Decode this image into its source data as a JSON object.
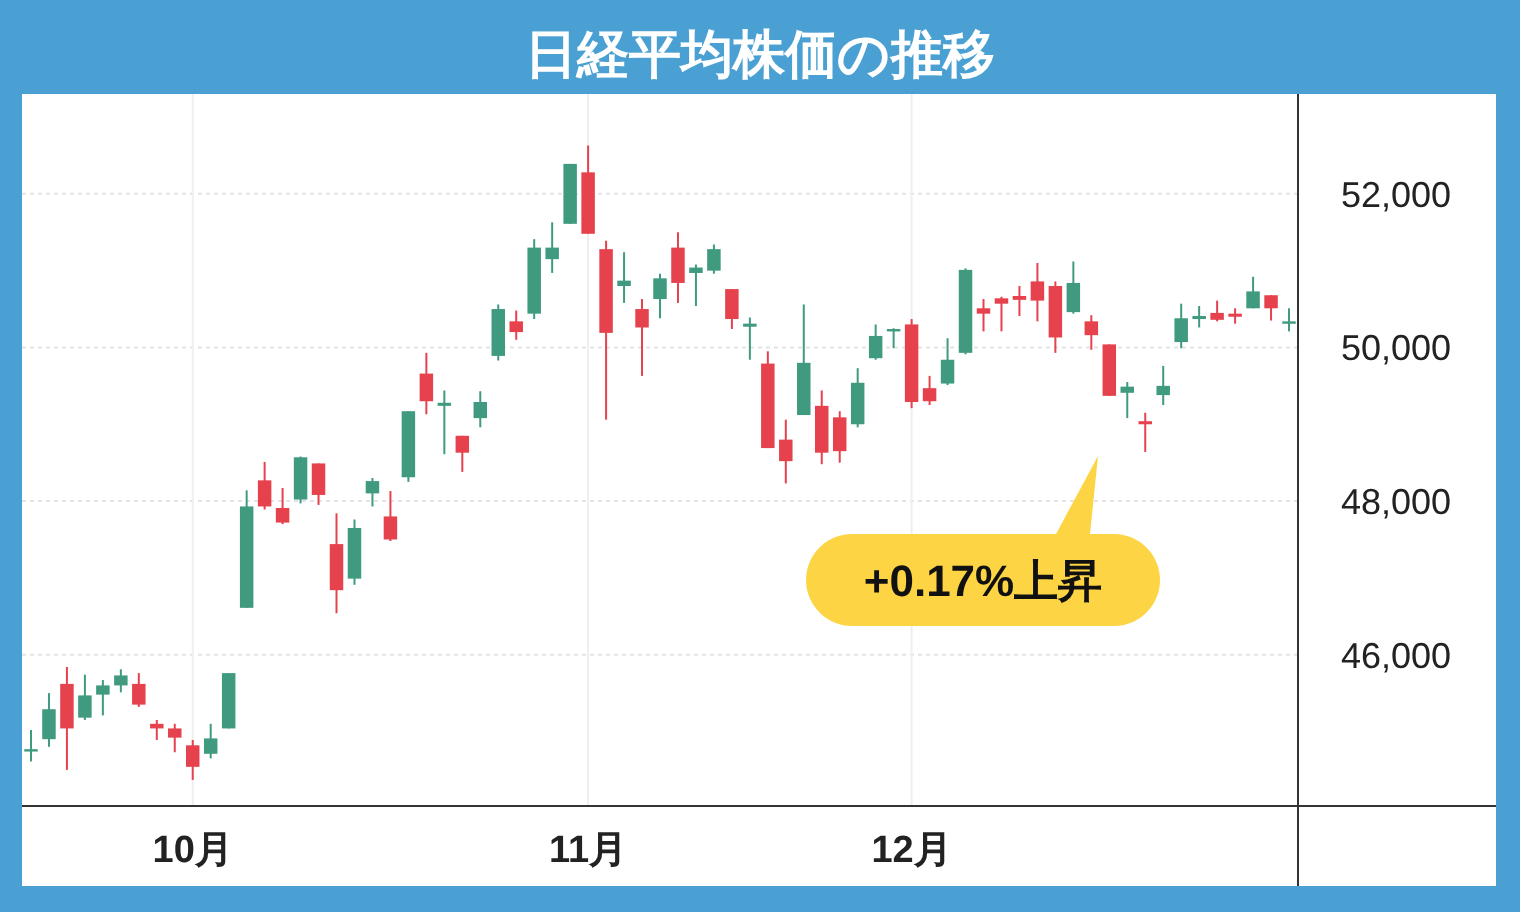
{
  "chart_data": {
    "type": "candlestick",
    "title": "日経平均株価の推移",
    "categories": [
      null,
      null,
      null,
      null,
      null,
      null,
      null,
      null,
      null,
      "10月",
      null,
      null,
      null,
      null,
      null,
      null,
      null,
      null,
      null,
      null,
      null,
      null,
      null,
      null,
      null,
      null,
      null,
      null,
      null,
      null,
      null,
      "11月",
      null,
      null,
      null,
      null,
      null,
      null,
      null,
      null,
      null,
      null,
      null,
      null,
      null,
      null,
      null,
      null,
      null,
      "12月",
      null,
      null,
      null,
      null,
      null,
      null,
      null,
      null,
      null,
      null,
      null,
      null,
      null,
      null,
      null,
      null,
      null,
      null,
      null,
      null,
      null
    ],
    "ohlc": [
      [
        44740,
        45020,
        44610,
        44770
      ],
      [
        44900,
        45500,
        44800,
        45290
      ],
      [
        45620,
        45840,
        44500,
        45040
      ],
      [
        45180,
        45740,
        45150,
        45470
      ],
      [
        45480,
        45670,
        45210,
        45600
      ],
      [
        45600,
        45810,
        45510,
        45730
      ],
      [
        45620,
        45760,
        45320,
        45350
      ],
      [
        45100,
        45150,
        44890,
        45040
      ],
      [
        45040,
        45100,
        44730,
        44920
      ],
      [
        44820,
        44890,
        44370,
        44540
      ],
      [
        44710,
        45100,
        44650,
        44910
      ],
      [
        45040,
        45760,
        45040,
        45760
      ],
      [
        46610,
        48140,
        46610,
        47930
      ],
      [
        48270,
        48510,
        47890,
        47930
      ],
      [
        47910,
        48170,
        47700,
        47720
      ],
      [
        48020,
        48580,
        47970,
        48570
      ],
      [
        48490,
        48490,
        47950,
        48080
      ],
      [
        47440,
        47840,
        46540,
        46840
      ],
      [
        46990,
        47760,
        46910,
        47650
      ],
      [
        48100,
        48300,
        47930,
        48260
      ],
      [
        47800,
        48130,
        47480,
        47500
      ],
      [
        48310,
        49170,
        48250,
        49170
      ],
      [
        49660,
        49930,
        49130,
        49300
      ],
      [
        49240,
        49440,
        48610,
        49280
      ],
      [
        48850,
        48850,
        48380,
        48630
      ],
      [
        49080,
        49430,
        48960,
        49290
      ],
      [
        49890,
        50560,
        49830,
        50500
      ],
      [
        50340,
        50480,
        50100,
        50200
      ],
      [
        50440,
        51410,
        50370,
        51300
      ],
      [
        51150,
        51630,
        50970,
        51300
      ],
      [
        51610,
        52390,
        51610,
        52390
      ],
      [
        52280,
        52630,
        51480,
        51480
      ],
      [
        51280,
        51390,
        49060,
        50190
      ],
      [
        50800,
        51240,
        50580,
        50870
      ],
      [
        50500,
        50630,
        49630,
        50260
      ],
      [
        50630,
        50960,
        50380,
        50900
      ],
      [
        51300,
        51500,
        50580,
        50840
      ],
      [
        50970,
        51080,
        50540,
        51040
      ],
      [
        51000,
        51340,
        50960,
        51280
      ],
      [
        50760,
        50760,
        50240,
        50370
      ],
      [
        50270,
        50390,
        49840,
        50310
      ],
      [
        49790,
        49950,
        48690,
        48690
      ],
      [
        48800,
        49060,
        48230,
        48520
      ],
      [
        49120,
        50560,
        49120,
        49800
      ],
      [
        49240,
        49440,
        48480,
        48630
      ],
      [
        49090,
        49170,
        48500,
        48650
      ],
      [
        49000,
        49730,
        48960,
        49540
      ],
      [
        49860,
        50300,
        49840,
        50150
      ],
      [
        50210,
        50250,
        49990,
        50240
      ],
      [
        50300,
        50370,
        49210,
        49290
      ],
      [
        49470,
        49630,
        49250,
        49300
      ],
      [
        49530,
        50120,
        49510,
        49840
      ],
      [
        49930,
        51030,
        49910,
        51010
      ],
      [
        50510,
        50630,
        50210,
        50440
      ],
      [
        50640,
        50660,
        50210,
        50570
      ],
      [
        50670,
        50800,
        50410,
        50620
      ],
      [
        50860,
        51100,
        50340,
        50610
      ],
      [
        50800,
        50860,
        49930,
        50130
      ],
      [
        50460,
        51120,
        50440,
        50840
      ],
      [
        50340,
        50420,
        49970,
        50160
      ],
      [
        50040,
        50040,
        49370,
        49370
      ],
      [
        49410,
        49550,
        49080,
        49490
      ],
      [
        49040,
        49150,
        48640,
        49000
      ],
      [
        49380,
        49760,
        49250,
        49500
      ],
      [
        50070,
        50570,
        49990,
        50380
      ],
      [
        50370,
        50540,
        50260,
        50410
      ],
      [
        50450,
        50610,
        50340,
        50360
      ],
      [
        50440,
        50510,
        50310,
        50400
      ],
      [
        50510,
        50920,
        50510,
        50730
      ],
      [
        50680,
        50680,
        50350,
        50510
      ],
      [
        50310,
        50510,
        50210,
        50340
      ]
    ],
    "colors": [
      "#3f9a80",
      "#3f9a80",
      "#e5424d",
      "#3f9a80",
      "#3f9a80",
      "#3f9a80",
      "#e5424d",
      "#e5424d",
      "#e5424d",
      "#e5424d",
      "#3f9a80",
      "#3f9a80",
      "#3f9a80",
      "#e5424d",
      "#e5424d",
      "#3f9a80",
      "#e5424d",
      "#e5424d",
      "#3f9a80",
      "#3f9a80",
      "#e5424d",
      "#3f9a80",
      "#e5424d",
      "#3f9a80",
      "#e5424d",
      "#3f9a80",
      "#3f9a80",
      "#e5424d",
      "#3f9a80",
      "#3f9a80",
      "#3f9a80",
      "#e5424d",
      "#e5424d",
      "#3f9a80",
      "#e5424d",
      "#3f9a80",
      "#e5424d",
      "#3f9a80",
      "#3f9a80",
      "#e5424d",
      "#3f9a80",
      "#e5424d",
      "#e5424d",
      "#3f9a80",
      "#e5424d",
      "#e5424d",
      "#3f9a80",
      "#3f9a80",
      "#3f9a80",
      "#e5424d",
      "#e5424d",
      "#3f9a80",
      "#3f9a80",
      "#e5424d",
      "#e5424d",
      "#e5424d",
      "#e5424d",
      "#e5424d",
      "#3f9a80",
      "#e5424d",
      "#e5424d",
      "#3f9a80",
      "#e5424d",
      "#3f9a80",
      "#3f9a80",
      "#3f9a80",
      "#e5424d",
      "#e5424d",
      "#3f9a80",
      "#e5424d",
      "#3f9a80"
    ],
    "ylim": [
      44030,
      53300
    ],
    "yticks": [
      {
        "value": 46000,
        "label": "46,000"
      },
      {
        "value": 48000,
        "label": "48,000"
      },
      {
        "value": 50000,
        "label": "50,000"
      },
      {
        "value": 52000,
        "label": "52,000"
      }
    ],
    "grid": true,
    "annotations": [
      "+0.17%上昇"
    ]
  }
}
